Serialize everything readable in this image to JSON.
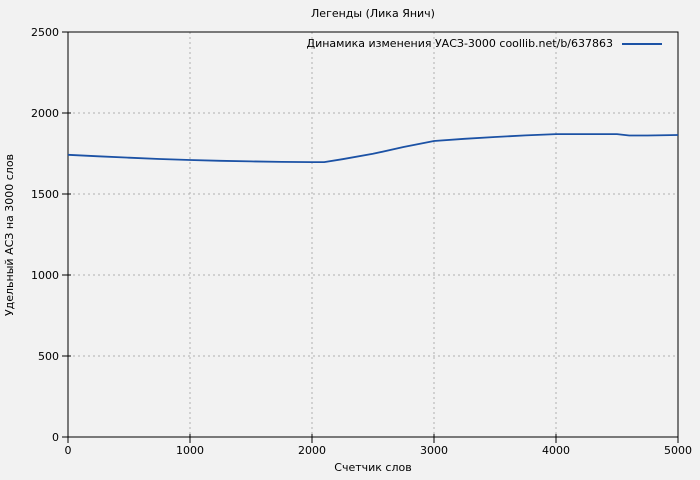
{
  "title": "Легенды (Лика Янич)",
  "colors": {
    "background": "#f2f2f2",
    "axis": "#000000",
    "grid": "#b0b0b0",
    "line": "#1c52a5",
    "text": "#000000"
  },
  "chart_data": {
    "type": "line",
    "title": "Легенды (Лика Янич)",
    "xlabel": "Счетчик слов",
    "ylabel": "Удельный АСЗ на 3000 слов",
    "xlim": [
      0,
      5000
    ],
    "ylim": [
      0,
      2500
    ],
    "xticks": [
      0,
      1000,
      2000,
      3000,
      4000,
      5000
    ],
    "yticks": [
      0,
      500,
      1000,
      1500,
      2000,
      2500
    ],
    "grid": true,
    "grid_style": "dotted",
    "legend_position": "top-right-inside",
    "series": [
      {
        "name": "Динамика изменения УАСЗ-3000 coollib.net/b/637863",
        "color": "#1c52a5",
        "x": [
          0,
          250,
          500,
          750,
          1000,
          1250,
          1500,
          1750,
          2000,
          2100,
          2250,
          2500,
          2750,
          3000,
          3250,
          3500,
          3750,
          4000,
          4250,
          4500,
          4600,
          4750,
          5000
        ],
        "y": [
          1742,
          1733,
          1724,
          1716,
          1710,
          1705,
          1701,
          1698,
          1697,
          1697,
          1715,
          1748,
          1790,
          1827,
          1841,
          1852,
          1862,
          1870,
          1870,
          1870,
          1861,
          1861,
          1864
        ]
      }
    ]
  }
}
